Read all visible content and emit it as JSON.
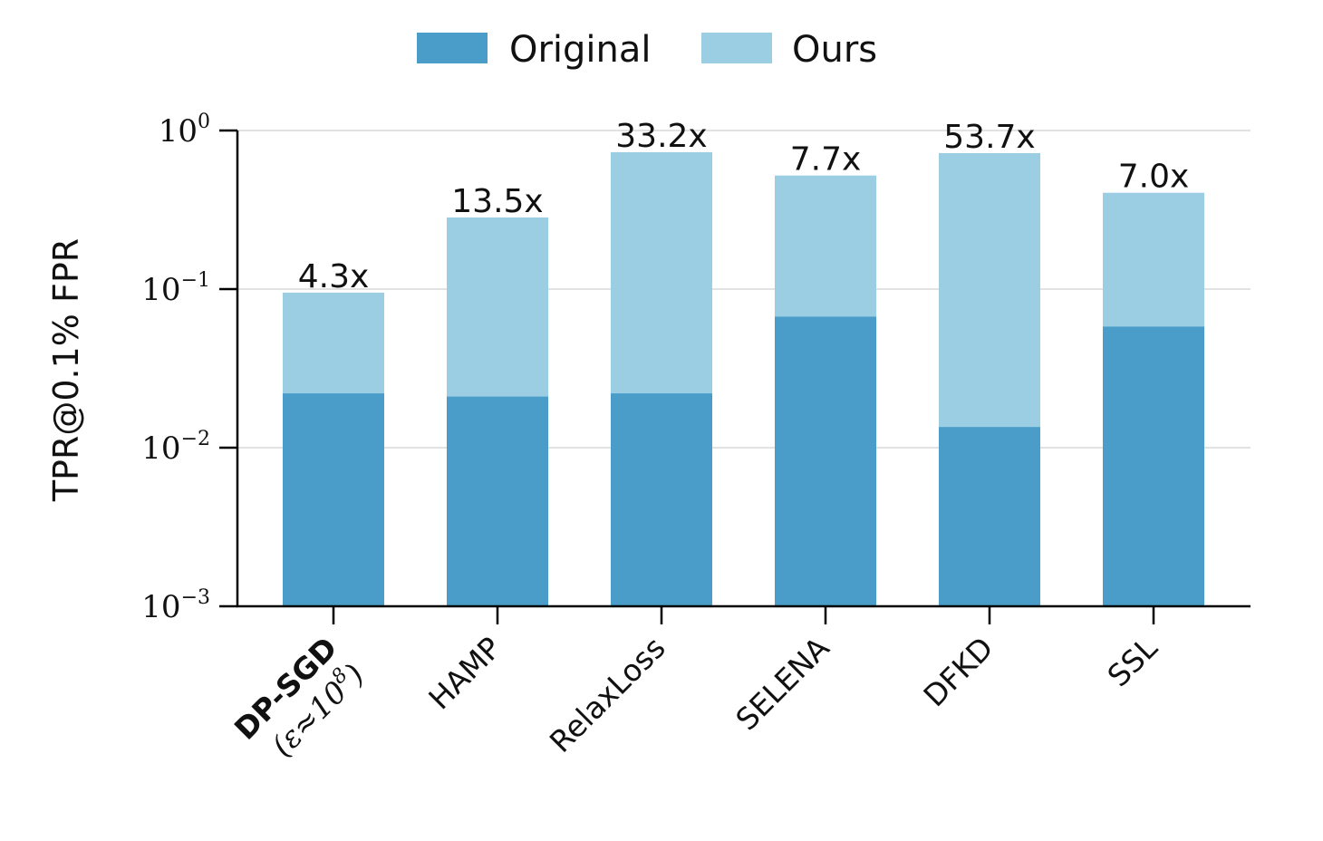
{
  "chart_data": {
    "type": "bar",
    "stacked_overlay": true,
    "yscale": "log",
    "ylim": [
      0.001,
      1
    ],
    "ylabel": "TPR@0.1% FPR",
    "xlabel": "",
    "title": "",
    "grid": "horizontal",
    "legend_position": "top-center",
    "categories": [
      {
        "main": "DP-SGD",
        "sub": "(ε≈10",
        "sub_exp": "8",
        "sub_close": ")",
        "bold": true
      },
      {
        "main": "HAMP"
      },
      {
        "main": "RelaxLoss"
      },
      {
        "main": "SELENA"
      },
      {
        "main": "DFKD"
      },
      {
        "main": "SSL"
      }
    ],
    "series": [
      {
        "name": "Original",
        "color": "#4a9dc9",
        "values": [
          0.022,
          0.021,
          0.022,
          0.067,
          0.0135,
          0.058
        ]
      },
      {
        "name": "Ours",
        "color": "#9bcde3",
        "values": [
          0.095,
          0.283,
          0.73,
          0.52,
          0.72,
          0.405
        ]
      }
    ],
    "bar_labels": [
      "4.3x",
      "13.5x",
      "33.2x",
      "7.7x",
      "53.7x",
      "7.0x"
    ],
    "yticks": [
      {
        "value": 1,
        "base": "10",
        "exp": "0"
      },
      {
        "value": 0.1,
        "base": "10",
        "exp": "−1"
      },
      {
        "value": 0.01,
        "base": "10",
        "exp": "−2"
      },
      {
        "value": 0.001,
        "base": "10",
        "exp": "−3"
      }
    ],
    "colors": {
      "axis": "#000000",
      "grid": "#d0d0d0",
      "text": "#111111"
    }
  }
}
